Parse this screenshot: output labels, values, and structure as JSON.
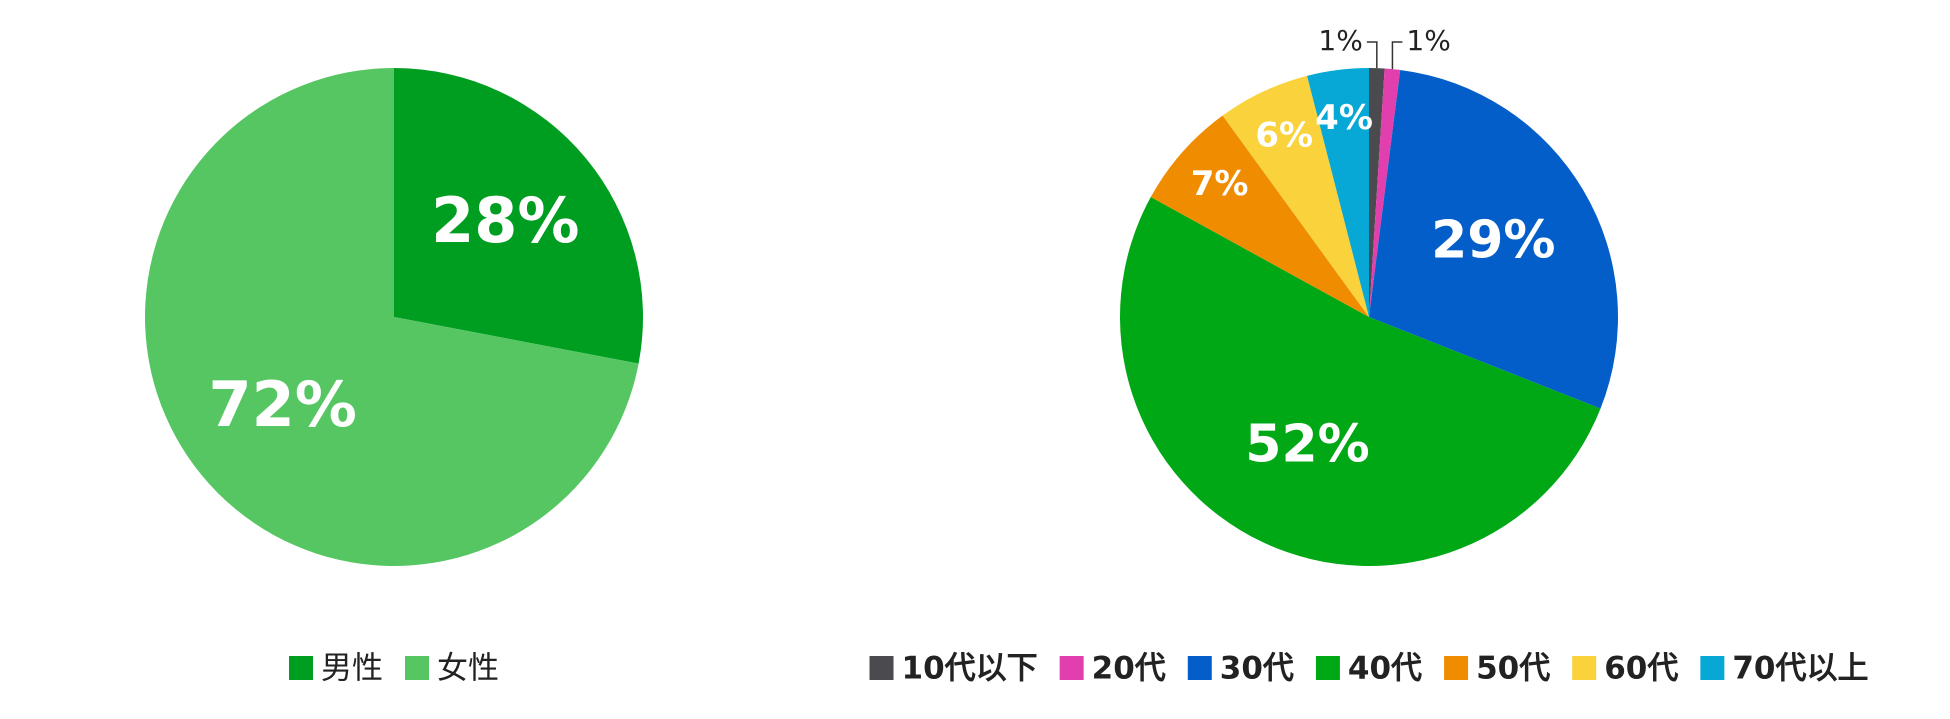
{
  "chart_data": [
    {
      "type": "pie",
      "categories": [
        "男性",
        "女性"
      ],
      "values": [
        28,
        72
      ],
      "value_labels": [
        "28%",
        "72%"
      ],
      "colors": [
        "#009e20",
        "#55c662"
      ],
      "legend": "bottom"
    },
    {
      "type": "pie",
      "categories": [
        "10代以下",
        "20代",
        "30代",
        "40代",
        "50代",
        "60代",
        "70代以上"
      ],
      "values": [
        1,
        1,
        29,
        52,
        7,
        6,
        4
      ],
      "value_labels": [
        "1%",
        "1%",
        "29%",
        "52%",
        "7%",
        "6%",
        "4%"
      ],
      "colors": [
        "#4a4a4f",
        "#e23fae",
        "#045ec9",
        "#00a815",
        "#f08c00",
        "#f9d23c",
        "#07a8d6"
      ],
      "legend": "bottom"
    }
  ]
}
